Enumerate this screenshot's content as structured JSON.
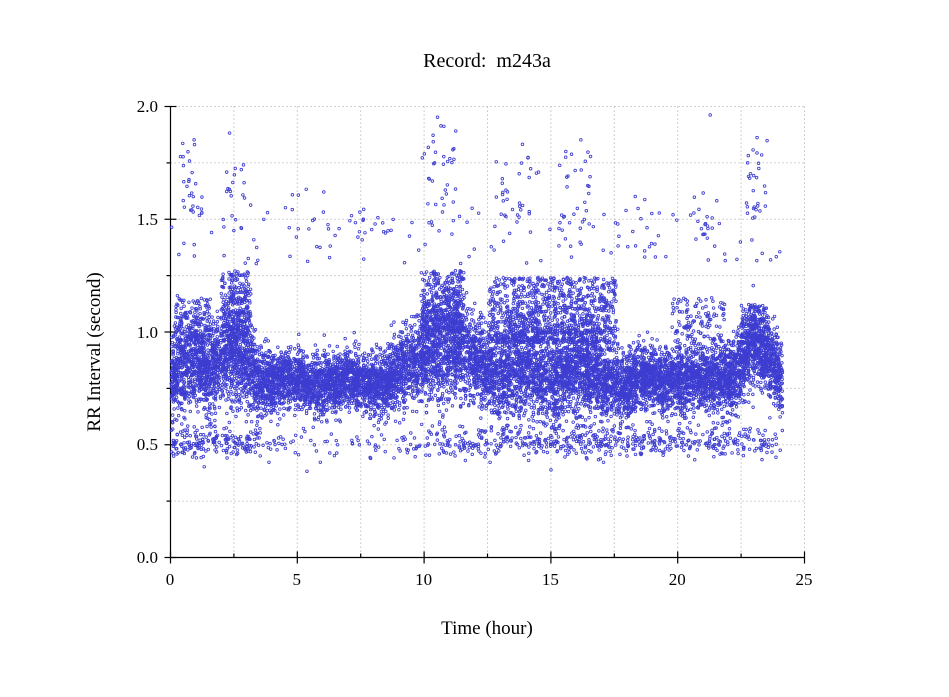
{
  "chart_data": {
    "type": "scatter",
    "title": "Record:  m243a",
    "xlabel": "Time (hour)",
    "ylabel": "RR Interval (second)",
    "xlim": [
      0,
      25
    ],
    "ylim": [
      0.0,
      2.0
    ],
    "x_tick_values": [
      0,
      5,
      10,
      15,
      20,
      25
    ],
    "x_tick_labels": [
      "0",
      "5",
      "10",
      "15",
      "20",
      "25"
    ],
    "x_minor_step": 2.5,
    "y_tick_values": [
      0,
      0.5,
      1.0,
      1.5,
      2.0
    ],
    "y_tick_labels": [
      "0.0",
      "0.5",
      "1.0",
      "1.5",
      "2.0"
    ],
    "y_minor_step": 0.25,
    "grid": {
      "style": "dotted",
      "color": "#b5b5b5",
      "x_step": 2.5,
      "y_step": 0.25
    },
    "axis_color": "#000000",
    "marker": {
      "shape": "open-circle",
      "color": "#3d3dd1",
      "radius_px": 1.3
    },
    "record_start_hour": 0.05,
    "record_duration_hours": 24.15,
    "band_points": 9500,
    "band_profile": {
      "hours": [
        0,
        0.5,
        1.0,
        1.5,
        2.0,
        2.5,
        3.0,
        3.5,
        4.0,
        5.0,
        6.0,
        7.0,
        8.0,
        9.0,
        9.5,
        10.0,
        10.5,
        11.0,
        11.5,
        12.0,
        13.0,
        14.0,
        15.0,
        16.0,
        17.0,
        17.5,
        18.0,
        19.0,
        20.0,
        21.0,
        22.0,
        22.6,
        23.0,
        23.4,
        23.8,
        24.15
      ],
      "mean_rr": [
        0.76,
        0.84,
        0.9,
        0.84,
        0.86,
        0.9,
        0.88,
        0.8,
        0.78,
        0.77,
        0.78,
        0.76,
        0.78,
        0.8,
        0.84,
        0.88,
        0.93,
        0.93,
        0.89,
        0.87,
        0.82,
        0.84,
        0.8,
        0.83,
        0.8,
        0.78,
        0.77,
        0.78,
        0.8,
        0.77,
        0.8,
        0.88,
        0.93,
        0.88,
        0.84,
        0.8
      ],
      "half_width": [
        0.1,
        0.12,
        0.12,
        0.11,
        0.12,
        0.13,
        0.12,
        0.09,
        0.08,
        0.07,
        0.08,
        0.07,
        0.08,
        0.09,
        0.11,
        0.12,
        0.13,
        0.13,
        0.12,
        0.11,
        0.12,
        0.13,
        0.12,
        0.12,
        0.11,
        0.1,
        0.08,
        0.08,
        0.08,
        0.08,
        0.09,
        0.1,
        0.1,
        0.09,
        0.09,
        0.08
      ]
    },
    "above_band_clusters": [
      {
        "t0": 0.2,
        "t1": 1.6,
        "n": 130,
        "y0": 0.95,
        "y1": 1.15
      },
      {
        "t0": 2.0,
        "t1": 3.2,
        "n": 260,
        "y0": 0.98,
        "y1": 1.27
      },
      {
        "t0": 9.9,
        "t1": 11.6,
        "n": 360,
        "y0": 1.0,
        "y1": 1.27
      },
      {
        "t0": 12.6,
        "t1": 17.6,
        "n": 900,
        "y0": 0.95,
        "y1": 1.24
      },
      {
        "t0": 19.8,
        "t1": 21.9,
        "n": 130,
        "y0": 0.92,
        "y1": 1.15
      },
      {
        "t0": 22.5,
        "t1": 23.6,
        "n": 130,
        "y0": 0.95,
        "y1": 1.12
      }
    ],
    "low_outliers": {
      "center_rr": 0.51,
      "sd_rr": 0.035,
      "min_rr": 0.42,
      "max_rr": 0.6,
      "segments": [
        {
          "t0": 0.05,
          "t1": 3.6,
          "n": 190
        },
        {
          "t0": 3.6,
          "t1": 9.6,
          "n": 70
        },
        {
          "t0": 9.6,
          "t1": 12.4,
          "n": 90
        },
        {
          "t0": 12.4,
          "t1": 24.15,
          "n": 460
        }
      ]
    },
    "high_outliers": {
      "background": {
        "t0": 0.05,
        "t1": 24.15,
        "n": 120,
        "y0": 1.3,
        "y1": 1.55
      },
      "clusters": [
        {
          "t0": 0.3,
          "t1": 1.3,
          "n": 26,
          "y0": 1.5,
          "y1": 1.85
        },
        {
          "t0": 2.0,
          "t1": 3.2,
          "n": 20,
          "y0": 1.45,
          "y1": 1.75
        },
        {
          "t0": 4.5,
          "t1": 6.5,
          "n": 12,
          "y0": 1.45,
          "y1": 1.65
        },
        {
          "t0": 7.3,
          "t1": 8.8,
          "n": 10,
          "y0": 1.4,
          "y1": 1.6
        },
        {
          "t0": 9.9,
          "t1": 11.3,
          "n": 30,
          "y0": 1.55,
          "y1": 1.93
        },
        {
          "t0": 12.8,
          "t1": 14.6,
          "n": 30,
          "y0": 1.5,
          "y1": 1.78
        },
        {
          "t0": 15.3,
          "t1": 16.6,
          "n": 25,
          "y0": 1.45,
          "y1": 1.8
        },
        {
          "t0": 17.5,
          "t1": 19.5,
          "n": 12,
          "y0": 1.35,
          "y1": 1.6
        },
        {
          "t0": 20.5,
          "t1": 21.6,
          "n": 15,
          "y0": 1.4,
          "y1": 1.62
        },
        {
          "t0": 22.7,
          "t1": 23.6,
          "n": 26,
          "y0": 1.5,
          "y1": 1.85
        }
      ]
    },
    "extreme_points": [
      [
        10.55,
        1.95
      ],
      [
        10.8,
        1.91
      ],
      [
        21.3,
        1.96
      ],
      [
        2.35,
        1.88
      ],
      [
        0.95,
        1.85
      ],
      [
        23.15,
        1.86
      ],
      [
        13.9,
        1.83
      ],
      [
        16.2,
        1.85
      ],
      [
        1.35,
        0.4
      ],
      [
        5.4,
        0.38
      ]
    ]
  }
}
